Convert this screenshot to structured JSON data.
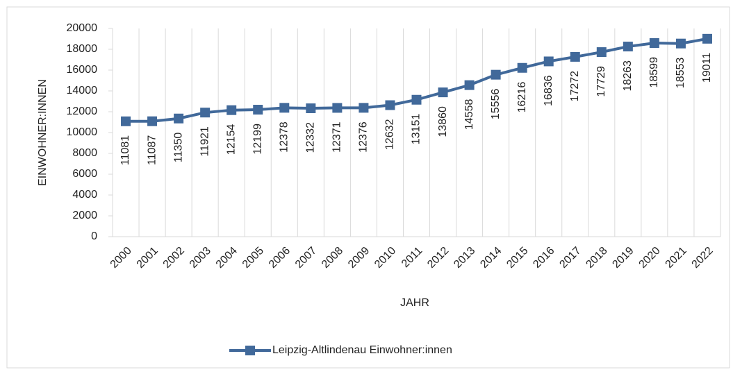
{
  "chart_data": {
    "type": "line",
    "x_label": "JAHR",
    "y_label": "EINWOHNER:INNEN",
    "categories": [
      "2000",
      "2001",
      "2002",
      "2003",
      "2004",
      "2005",
      "2006",
      "2007",
      "2008",
      "2009",
      "2010",
      "2011",
      "2012",
      "2013",
      "2014",
      "2015",
      "2016",
      "2017",
      "2018",
      "2019",
      "2020",
      "2021",
      "2022"
    ],
    "series": [
      {
        "name": "Leipzig-Altlindenau Einwohner:innen",
        "color": "#41699a",
        "values": [
          11081,
          11087,
          11350,
          11921,
          12154,
          12199,
          12378,
          12332,
          12371,
          12376,
          12632,
          13151,
          13860,
          14558,
          15556,
          16216,
          16836,
          17272,
          17729,
          18263,
          18599,
          18553,
          19011
        ]
      }
    ],
    "ylim": [
      0,
      20000
    ],
    "yticks": [
      0,
      2000,
      4000,
      6000,
      8000,
      10000,
      12000,
      14000,
      16000,
      18000,
      20000
    ],
    "grid": "x",
    "legend": "bottom",
    "data_labels": true
  }
}
